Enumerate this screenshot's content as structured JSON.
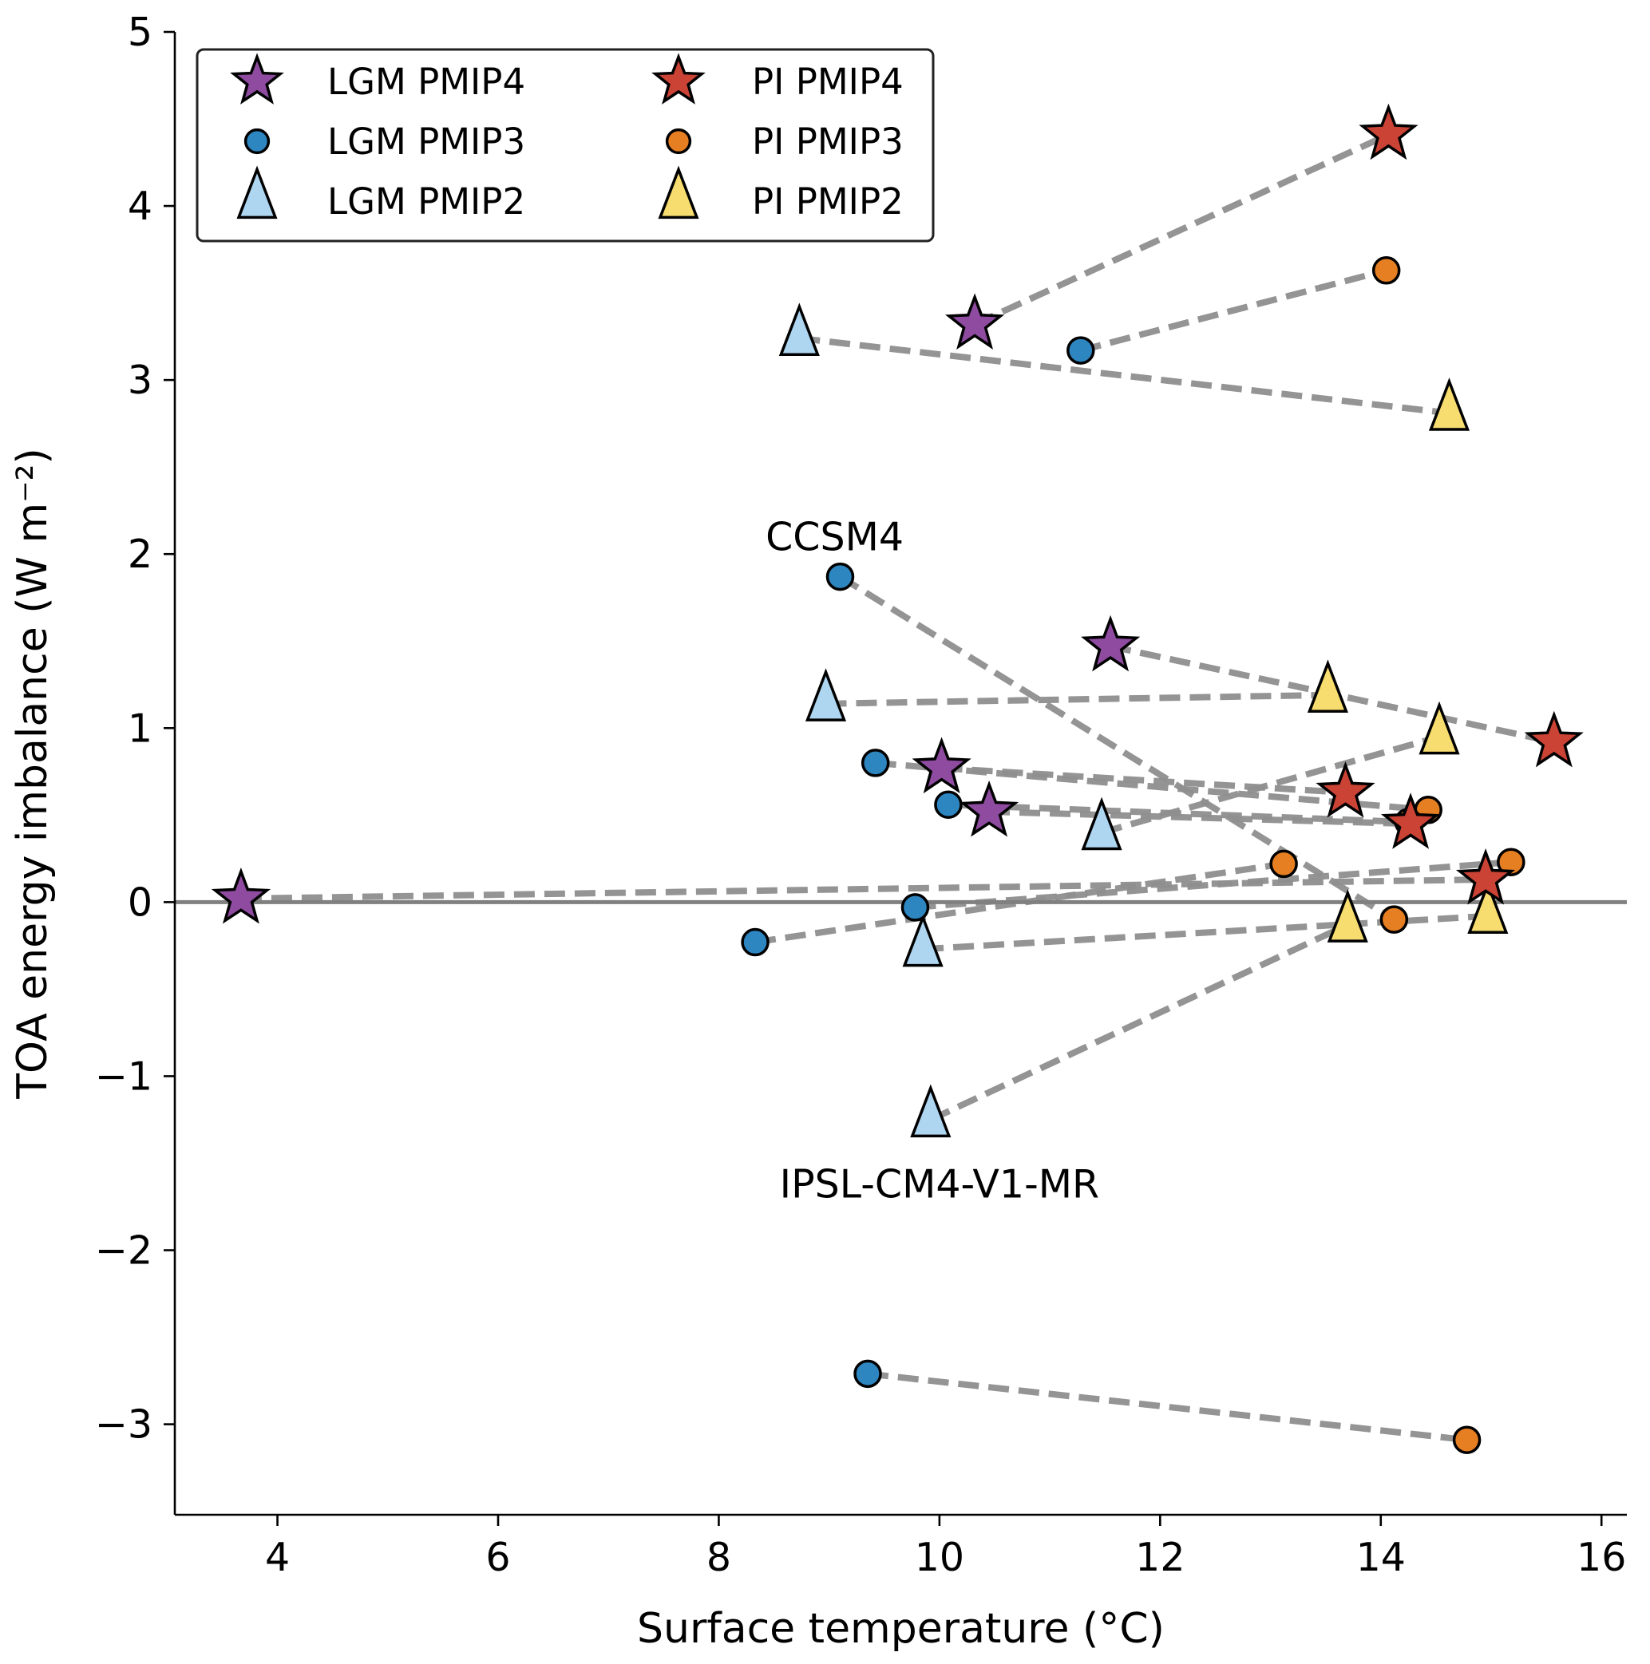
{
  "chart_data": {
    "type": "scatter",
    "title": "",
    "xlabel": "Surface temperature (°C)",
    "ylabel": "TOA energy imbalance (W m⁻²)",
    "xlim": [
      3.07,
      16.23
    ],
    "ylim": [
      -3.52,
      5.0
    ],
    "xticks": [
      4,
      6,
      8,
      10,
      12,
      14,
      16
    ],
    "yticks": [
      -3,
      -2,
      -1,
      0,
      1,
      2,
      3,
      4,
      5
    ],
    "ytick_labels": [
      "−3",
      "−2",
      "−1",
      "0",
      "1",
      "2",
      "3",
      "4",
      "5"
    ],
    "grid": false,
    "zero_line": 0,
    "legend": {
      "placement": "top-left",
      "columns": 2,
      "entries": [
        {
          "label": "LGM PMIP4",
          "series": "lgm_pmip4"
        },
        {
          "label": "LGM PMIP3",
          "series": "lgm_pmip3"
        },
        {
          "label": "LGM PMIP2",
          "series": "lgm_pmip2"
        },
        {
          "label": "PI PMIP4",
          "series": "pi_pmip4"
        },
        {
          "label": "PI PMIP3",
          "series": "pi_pmip3"
        },
        {
          "label": "PI PMIP2",
          "series": "pi_pmip2"
        }
      ]
    },
    "series": [
      {
        "id": "lgm_pmip4",
        "name": "LGM PMIP4",
        "marker": "star",
        "color": "#8e4ba0",
        "points": [
          [
            3.67,
            0.02
          ],
          [
            10.32,
            3.32
          ],
          [
            11.55,
            1.47
          ],
          [
            10.02,
            0.77
          ],
          [
            10.45,
            0.52
          ]
        ]
      },
      {
        "id": "lgm_pmip3",
        "name": "LGM PMIP3",
        "marker": "circle",
        "color": "#2e86c1",
        "points": [
          [
            11.28,
            3.17
          ],
          [
            9.1,
            1.87
          ],
          [
            9.42,
            0.8
          ],
          [
            10.08,
            0.56
          ],
          [
            9.78,
            -0.03
          ],
          [
            8.33,
            -0.23
          ],
          [
            9.35,
            -2.71
          ]
        ]
      },
      {
        "id": "lgm_pmip2",
        "name": "LGM PMIP2",
        "marker": "triangle",
        "color": "#aed6f1",
        "points": [
          [
            8.73,
            3.24
          ],
          [
            8.97,
            1.14
          ],
          [
            11.47,
            0.4
          ],
          [
            9.85,
            -0.27
          ],
          [
            9.92,
            -1.25
          ]
        ]
      },
      {
        "id": "pi_pmip4",
        "name": "PI PMIP4",
        "marker": "star",
        "color": "#cb4335",
        "points": [
          [
            14.07,
            4.41
          ],
          [
            15.57,
            0.92
          ],
          [
            13.68,
            0.63
          ],
          [
            14.27,
            0.45
          ],
          [
            14.95,
            0.13
          ]
        ]
      },
      {
        "id": "pi_pmip3",
        "name": "PI PMIP3",
        "marker": "circle",
        "color": "#e67e22",
        "points": [
          [
            14.05,
            3.63
          ],
          [
            14.43,
            0.53
          ],
          [
            14.25,
            0.46
          ],
          [
            13.12,
            0.22
          ],
          [
            15.18,
            0.23
          ],
          [
            14.12,
            -0.1
          ],
          [
            14.78,
            -3.09
          ]
        ]
      },
      {
        "id": "pi_pmip2",
        "name": "PI PMIP2",
        "marker": "triangle",
        "color": "#f7dc6f",
        "points": [
          [
            14.62,
            2.81
          ],
          [
            13.52,
            1.19
          ],
          [
            14.53,
            0.95
          ],
          [
            13.7,
            -0.13
          ],
          [
            14.97,
            -0.08
          ]
        ]
      }
    ],
    "pairs": [
      {
        "lgm": [
          10.32,
          3.32
        ],
        "pi": [
          14.07,
          4.41
        ]
      },
      {
        "lgm": [
          11.28,
          3.17
        ],
        "pi": [
          14.05,
          3.63
        ]
      },
      {
        "lgm": [
          8.73,
          3.24
        ],
        "pi": [
          14.62,
          2.81
        ]
      },
      {
        "lgm": [
          9.1,
          1.87
        ],
        "pi": [
          14.12,
          -0.1
        ]
      },
      {
        "lgm": [
          11.55,
          1.47
        ],
        "pi": [
          15.57,
          0.92
        ]
      },
      {
        "lgm": [
          8.97,
          1.14
        ],
        "pi": [
          13.52,
          1.19
        ]
      },
      {
        "lgm": [
          9.42,
          0.8
        ],
        "pi": [
          14.43,
          0.53
        ]
      },
      {
        "lgm": [
          10.02,
          0.77
        ],
        "pi": [
          13.68,
          0.63
        ]
      },
      {
        "lgm": [
          10.08,
          0.56
        ],
        "pi": [
          14.25,
          0.46
        ]
      },
      {
        "lgm": [
          10.45,
          0.52
        ],
        "pi": [
          14.27,
          0.45
        ]
      },
      {
        "lgm": [
          11.47,
          0.4
        ],
        "pi": [
          14.53,
          0.95
        ]
      },
      {
        "lgm": [
          3.67,
          0.02
        ],
        "pi": [
          14.95,
          0.13
        ]
      },
      {
        "lgm": [
          9.78,
          -0.03
        ],
        "pi": [
          15.18,
          0.23
        ]
      },
      {
        "lgm": [
          8.33,
          -0.23
        ],
        "pi": [
          13.12,
          0.22
        ]
      },
      {
        "lgm": [
          9.85,
          -0.27
        ],
        "pi": [
          14.97,
          -0.08
        ]
      },
      {
        "lgm": [
          9.92,
          -1.25
        ],
        "pi": [
          13.7,
          -0.13
        ]
      },
      {
        "lgm": [
          9.35,
          -2.71
        ],
        "pi": [
          14.78,
          -3.09
        ]
      }
    ],
    "annotations": [
      {
        "text": "CCSM4",
        "x": 9.05,
        "y": 2.1
      },
      {
        "text": "IPSL-CM4-V1-MR",
        "x": 10.0,
        "y": -1.62
      }
    ]
  }
}
